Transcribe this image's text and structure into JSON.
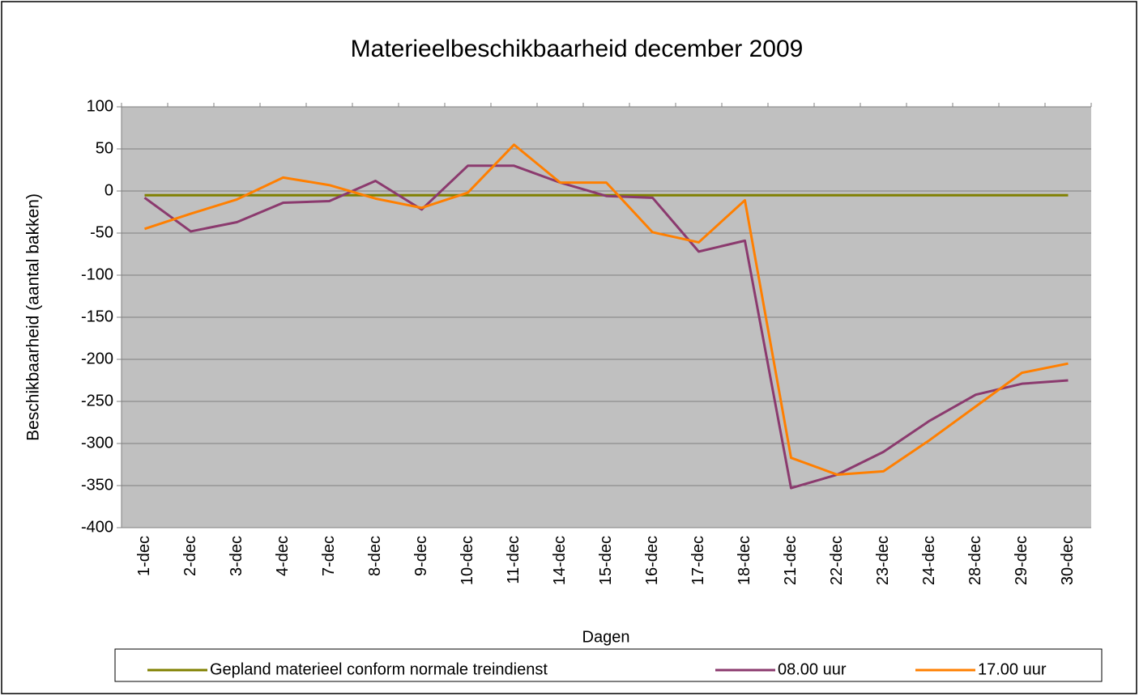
{
  "chart_data": {
    "type": "line",
    "title": "Materieelbeschikbaarheid december 2009",
    "x_label": "Dagen",
    "y_label": "Beschikbaarheid (aantal bakken)",
    "categories": [
      "1-dec",
      "2-dec",
      "3-dec",
      "4-dec",
      "7-dec",
      "8-dec",
      "9-dec",
      "10-dec",
      "11-dec",
      "14-dec",
      "15-dec",
      "16-dec",
      "17-dec",
      "18-dec",
      "21-dec",
      "22-dec",
      "23-dec",
      "24-dec",
      "28-dec",
      "29-dec",
      "30-dec"
    ],
    "series": [
      {
        "name": "Gepland materieel conform normale treindienst",
        "color": "#808000",
        "values": [
          -5,
          -5,
          -5,
          -5,
          -5,
          -5,
          -5,
          -5,
          -5,
          -5,
          -5,
          -5,
          -5,
          -5,
          -5,
          -5,
          -5,
          -5,
          -5,
          -5,
          -5
        ]
      },
      {
        "name": "08.00 uur",
        "color": "#8b3a6e",
        "values": [
          -8,
          -48,
          -37,
          -14,
          -12,
          12,
          -22,
          30,
          30,
          10,
          -6,
          -8,
          -72,
          -59,
          -353,
          -337,
          -310,
          -273,
          -242,
          -229,
          -225
        ]
      },
      {
        "name": "17.00 uur",
        "color": "#ff7f00",
        "values": [
          -45,
          -27,
          -10,
          16,
          7,
          -9,
          -20,
          -2,
          55,
          10,
          10,
          -49,
          -61,
          -11,
          -317,
          -337,
          -333,
          -296,
          -256,
          -216,
          -205
        ]
      }
    ],
    "ylim": [
      -400,
      100
    ],
    "yticks": [
      100,
      50,
      0,
      -50,
      -100,
      -150,
      -200,
      -250,
      -300,
      -350,
      -400
    ],
    "grid": true,
    "plot_background": "#c0c0c0",
    "legend": "bottom"
  }
}
